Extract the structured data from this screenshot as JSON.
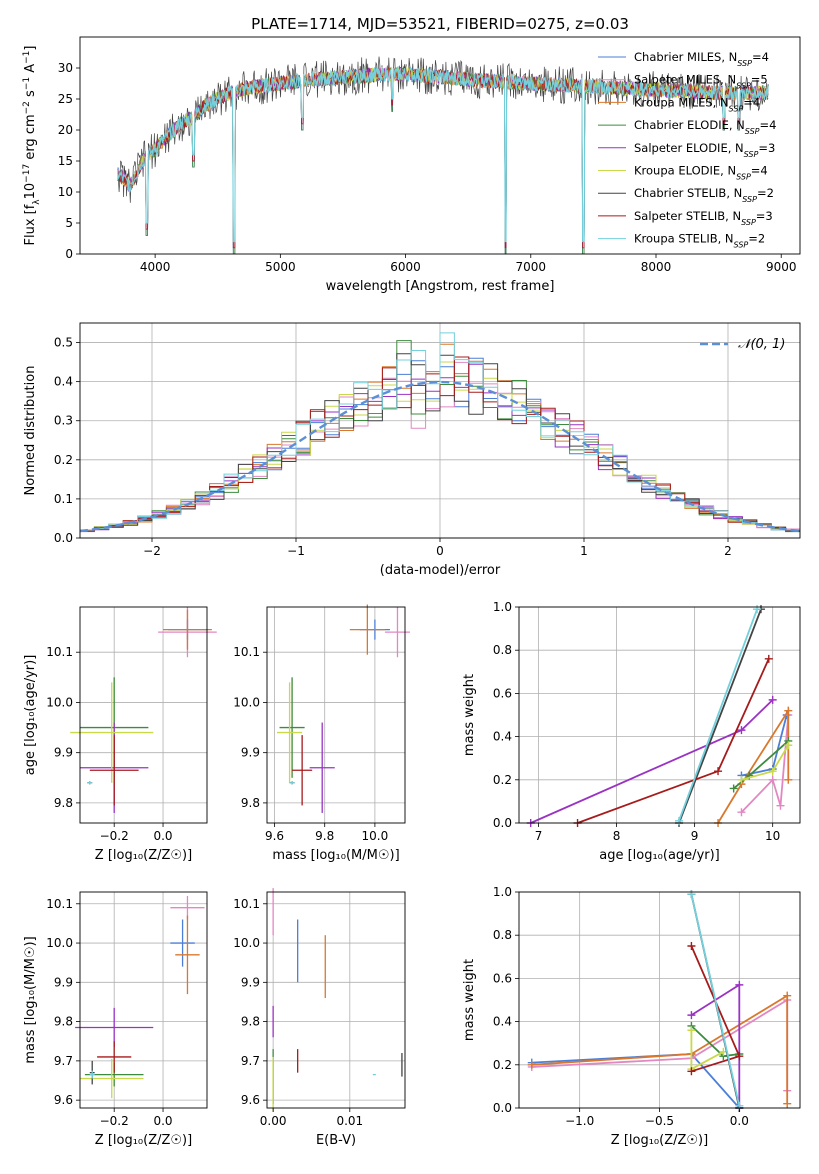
{
  "figure_title": "PLATE=1714, MJD=53521, FIBERID=0275, z=0.03",
  "palette": [
    "#4b7fd8",
    "#e287c2",
    "#d9782d",
    "#3d8b3d",
    "#9a32c4",
    "#c9d94a",
    "#444444",
    "#a61b1b",
    "#73d0dc"
  ],
  "chart_data": [
    {
      "id": "spectrum",
      "type": "line",
      "title": "PLATE=1714, MJD=53521, FIBERID=0275, z=0.03",
      "xlabel": "wavelength [Angstrom, rest frame]",
      "ylabel_parts": [
        "Flux [f",
        "λ",
        "10",
        "−17",
        " erg cm",
        "−2",
        " s",
        "−1",
        " A",
        "−1",
        "]"
      ],
      "xlim": [
        3400,
        9150
      ],
      "ylim": [
        0,
        35
      ],
      "xticks": [
        4000,
        5000,
        6000,
        7000,
        8000,
        9000
      ],
      "yticks": [
        0,
        5,
        10,
        15,
        20,
        25,
        30
      ],
      "grid": false,
      "legend_position": "top-right",
      "continuum": [
        [
          3700,
          13
        ],
        [
          3800,
          11
        ],
        [
          3900,
          15
        ],
        [
          4000,
          17
        ],
        [
          4100,
          19
        ],
        [
          4200,
          21
        ],
        [
          4300,
          22
        ],
        [
          4400,
          24
        ],
        [
          4600,
          26
        ],
        [
          4800,
          27
        ],
        [
          5000,
          27.5
        ],
        [
          5200,
          28
        ],
        [
          5500,
          28.5
        ],
        [
          5800,
          29
        ],
        [
          6000,
          29
        ],
        [
          6300,
          28.5
        ],
        [
          6600,
          28
        ],
        [
          7000,
          27.5
        ],
        [
          7500,
          27
        ],
        [
          8000,
          26.5
        ],
        [
          8500,
          26
        ],
        [
          8900,
          26
        ]
      ],
      "dips": [
        {
          "x": 3933,
          "y": 3
        },
        {
          "x": 4305,
          "y": 14
        },
        {
          "x": 4630,
          "y": 0
        },
        {
          "x": 5175,
          "y": 20
        },
        {
          "x": 5893,
          "y": 23
        },
        {
          "x": 6800,
          "y": 0
        },
        {
          "x": 7420,
          "y": 0
        },
        {
          "x": 8542,
          "y": 20
        },
        {
          "x": 8662,
          "y": 20
        }
      ],
      "series": [
        {
          "name": "Chabrier MILES",
          "nssp": "4"
        },
        {
          "name": "Salpeter MILES",
          "nssp": "5"
        },
        {
          "name": "Kroupa MILES",
          "nssp": "4"
        },
        {
          "name": "Chabrier ELODIE",
          "nssp": "4"
        },
        {
          "name": "Salpeter ELODIE",
          "nssp": "3"
        },
        {
          "name": "Kroupa ELODIE",
          "nssp": "4"
        },
        {
          "name": "Chabrier STELIB",
          "nssp": "2"
        },
        {
          "name": "Salpeter STELIB",
          "nssp": "3"
        },
        {
          "name": "Kroupa STELIB",
          "nssp": "2"
        }
      ]
    },
    {
      "id": "residuals",
      "type": "line",
      "xlabel": "(data-model)/error",
      "ylabel": "Normed distribution",
      "xlim": [
        -2.5,
        2.5
      ],
      "ylim": [
        0,
        0.55
      ],
      "xticks": [
        -2,
        -1,
        0,
        1,
        2
      ],
      "yticks": [
        0.0,
        0.1,
        0.2,
        0.3,
        0.4,
        0.5
      ],
      "grid": true,
      "legend_position": "top-right",
      "legend_label": "𝒩(0, 1)",
      "bin_width": 0.1
    },
    {
      "id": "z-age",
      "type": "scatter",
      "xlabel": "Z [log₁₀(Z/Z☉)]",
      "ylabel": "age  [log₁₀(age/yr)]",
      "xlim": [
        -0.34,
        0.18
      ],
      "ylim": [
        9.76,
        10.19
      ],
      "xticks": [
        -0.2,
        0.0
      ],
      "yticks": [
        9.8,
        9.9,
        10.0,
        10.1
      ],
      "grid": true,
      "points": [
        {
          "x": 0.1,
          "y": 10.145,
          "xerr": 0.08,
          "yerr": 0.02
        },
        {
          "x": 0.1,
          "y": 10.14,
          "xerr": 0.12,
          "yerr": 0.05
        },
        {
          "x": 0.1,
          "y": 10.145,
          "xerr": 0.1,
          "yerr": 0.04
        },
        {
          "x": -0.2,
          "y": 9.95,
          "xerr": 0.14,
          "yerr": 0.1
        },
        {
          "x": -0.2,
          "y": 9.87,
          "xerr": 0.14,
          "yerr": 0.09
        },
        {
          "x": -0.21,
          "y": 9.94,
          "xerr": 0.17,
          "yerr": 0.1
        },
        {
          "x": -0.3,
          "y": 9.84,
          "xerr": 0.01,
          "yerr": 0.003
        },
        {
          "x": -0.2,
          "y": 9.865,
          "xerr": 0.1,
          "yerr": 0.07
        },
        {
          "x": -0.3,
          "y": 9.84,
          "xerr": 0.01,
          "yerr": 0.003
        }
      ]
    },
    {
      "id": "mass-age",
      "type": "scatter",
      "xlabel": "mass [log₁₀(M/M☉)]",
      "ylabel": "",
      "xlim": [
        9.57,
        10.12
      ],
      "ylim": [
        9.76,
        10.19
      ],
      "xticks": [
        9.6,
        9.8,
        10.0
      ],
      "yticks": [
        9.8,
        9.9,
        10.0,
        10.1
      ],
      "grid": true,
      "points": [
        {
          "x": 10.0,
          "y": 10.145,
          "xerr": 0.06,
          "yerr": 0.02
        },
        {
          "x": 10.09,
          "y": 10.14,
          "xerr": 0.05,
          "yerr": 0.05
        },
        {
          "x": 9.97,
          "y": 10.145,
          "xerr": 0.07,
          "yerr": 0.05
        },
        {
          "x": 9.67,
          "y": 9.95,
          "xerr": 0.05,
          "yerr": 0.1
        },
        {
          "x": 9.79,
          "y": 9.87,
          "xerr": 0.05,
          "yerr": 0.09
        },
        {
          "x": 9.66,
          "y": 9.94,
          "xerr": 0.05,
          "yerr": 0.1
        },
        {
          "x": 9.67,
          "y": 9.84,
          "xerr": 0.01,
          "yerr": 0.003
        },
        {
          "x": 9.71,
          "y": 9.865,
          "xerr": 0.04,
          "yerr": 0.07
        },
        {
          "x": 9.67,
          "y": 9.84,
          "xerr": 0.01,
          "yerr": 0.003
        }
      ]
    },
    {
      "id": "weight-age",
      "type": "line",
      "xlabel": "age  [log₁₀(age/yr)]",
      "ylabel": "mass weight",
      "xlim": [
        6.75,
        10.35
      ],
      "ylim": [
        0,
        1
      ],
      "xticks": [
        7,
        8,
        9,
        10
      ],
      "yticks": [
        0.0,
        0.2,
        0.4,
        0.6,
        0.8,
        1.0
      ],
      "grid": true,
      "series": [
        {
          "name": "Chabrier MILES",
          "points": [
            [
              9.6,
              0.22
            ],
            [
              10.0,
              0.25
            ],
            [
              10.18,
              0.5
            ]
          ]
        },
        {
          "name": "Salpeter MILES",
          "points": [
            [
              9.6,
              0.05
            ],
            [
              10.0,
              0.2
            ],
            [
              10.1,
              0.08
            ],
            [
              10.2,
              0.5
            ]
          ]
        },
        {
          "name": "Kroupa MILES",
          "points": [
            [
              9.3,
              0.0
            ],
            [
              9.6,
              0.18
            ],
            [
              10.2,
              0.52
            ],
            [
              10.2,
              0.2
            ]
          ]
        },
        {
          "name": "Chabrier ELODIE",
          "points": [
            [
              9.5,
              0.16
            ],
            [
              9.7,
              0.22
            ],
            [
              10.2,
              0.38
            ]
          ]
        },
        {
          "name": "Salpeter ELODIE",
          "points": [
            [
              6.9,
              0.0
            ],
            [
              9.6,
              0.43
            ],
            [
              10.0,
              0.57
            ]
          ]
        },
        {
          "name": "Kroupa ELODIE",
          "points": [
            [
              9.6,
              0.2
            ],
            [
              10.0,
              0.24
            ],
            [
              10.2,
              0.36
            ]
          ]
        },
        {
          "name": "Chabrier STELIB",
          "points": [
            [
              8.8,
              0.0
            ],
            [
              9.85,
              0.99
            ]
          ]
        },
        {
          "name": "Salpeter STELIB",
          "points": [
            [
              7.5,
              0.0
            ],
            [
              9.3,
              0.24
            ],
            [
              9.95,
              0.76
            ]
          ]
        },
        {
          "name": "Kroupa STELIB",
          "points": [
            [
              8.8,
              0.01
            ],
            [
              9.8,
              0.99
            ]
          ]
        }
      ]
    },
    {
      "id": "z-mass",
      "type": "scatter",
      "xlabel": "Z [log₁₀(Z/Z☉)]",
      "ylabel": "mass [log₁₀(M/M☉)]",
      "xlim": [
        -0.34,
        0.18
      ],
      "ylim": [
        9.58,
        10.13
      ],
      "xticks": [
        -0.2,
        0.0
      ],
      "yticks": [
        9.6,
        9.7,
        9.8,
        9.9,
        10.0,
        10.1
      ],
      "grid": true,
      "points": [
        {
          "x": 0.08,
          "y": 10.0,
          "xerr": 0.05,
          "yerr": 0.06
        },
        {
          "x": 0.1,
          "y": 10.09,
          "xerr": 0.07,
          "yerr": 0.03
        },
        {
          "x": 0.1,
          "y": 9.97,
          "xerr": 0.05,
          "yerr": 0.1
        },
        {
          "x": -0.2,
          "y": 9.665,
          "xerr": 0.12,
          "yerr": 0.03
        },
        {
          "x": -0.2,
          "y": 9.785,
          "xerr": 0.16,
          "yerr": 0.05
        },
        {
          "x": -0.21,
          "y": 9.655,
          "xerr": 0.13,
          "yerr": 0.05
        },
        {
          "x": -0.29,
          "y": 9.67,
          "xerr": 0.01,
          "yerr": 0.03
        },
        {
          "x": -0.2,
          "y": 9.71,
          "xerr": 0.07,
          "yerr": 0.04
        },
        {
          "x": -0.29,
          "y": 9.665,
          "xerr": 0.01,
          "yerr": 0.01
        }
      ]
    },
    {
      "id": "ebv-mass",
      "type": "scatter",
      "xlabel": "E(B-V)",
      "ylabel": "",
      "xlim": [
        -0.0008,
        0.0172
      ],
      "ylim": [
        9.58,
        10.13
      ],
      "xticks": [
        0.0,
        0.01
      ],
      "yticks": [
        9.6,
        9.7,
        9.8,
        9.9,
        10.0,
        10.1
      ],
      "grid": true,
      "points": [
        {
          "x": 0.0032,
          "y": 9.98,
          "xerr": 0,
          "yerr": 0.08
        },
        {
          "x": 0.0,
          "y": 10.08,
          "xerr": 0,
          "yerr": 0.06
        },
        {
          "x": 0.0068,
          "y": 9.94,
          "xerr": 0,
          "yerr": 0.08
        },
        {
          "x": 0.0,
          "y": 9.66,
          "xerr": 0,
          "yerr": 0.07
        },
        {
          "x": 0.0,
          "y": 9.8,
          "xerr": 0,
          "yerr": 0.04
        },
        {
          "x": 0.0,
          "y": 9.64,
          "xerr": 0,
          "yerr": 0.07
        },
        {
          "x": 0.0168,
          "y": 9.69,
          "xerr": 0,
          "yerr": 0.03
        },
        {
          "x": 0.0032,
          "y": 9.7,
          "xerr": 0,
          "yerr": 0.03
        },
        {
          "x": 0.0132,
          "y": 9.665,
          "xerr": 0.0002,
          "yerr": 0.001
        }
      ]
    },
    {
      "id": "weight-z",
      "type": "line",
      "xlabel": "Z [log₁₀(Z/Z☉)]",
      "ylabel": "mass weight",
      "xlim": [
        -1.38,
        0.38
      ],
      "ylim": [
        0,
        1
      ],
      "xticks": [
        -1.0,
        -0.5,
        0.0
      ],
      "yticks": [
        0.0,
        0.2,
        0.4,
        0.6,
        0.8,
        1.0
      ],
      "grid": true,
      "series": [
        {
          "name": "Chabrier MILES",
          "points": [
            [
              -1.3,
              0.21
            ],
            [
              -0.3,
              0.25
            ],
            [
              0.0,
              0.0
            ]
          ]
        },
        {
          "name": "Salpeter MILES",
          "points": [
            [
              -1.3,
              0.19
            ],
            [
              -0.3,
              0.23
            ],
            [
              0.3,
              0.5
            ],
            [
              0.3,
              0.08
            ]
          ]
        },
        {
          "name": "Kroupa MILES",
          "points": [
            [
              -1.3,
              0.2
            ],
            [
              -0.3,
              0.25
            ],
            [
              0.3,
              0.52
            ],
            [
              0.3,
              0.02
            ]
          ]
        },
        {
          "name": "Chabrier ELODIE",
          "points": [
            [
              -0.3,
              0.38
            ],
            [
              -0.1,
              0.24
            ],
            [
              0.0,
              0.25
            ]
          ]
        },
        {
          "name": "Salpeter ELODIE",
          "points": [
            [
              -0.3,
              0.43
            ],
            [
              0.0,
              0.57
            ],
            [
              0.0,
              0.0
            ]
          ]
        },
        {
          "name": "Kroupa ELODIE",
          "points": [
            [
              -0.3,
              0.36
            ],
            [
              -0.3,
              0.18
            ],
            [
              -0.1,
              0.26
            ]
          ]
        },
        {
          "name": "Chabrier STELIB",
          "points": [
            [
              -0.3,
              0.99
            ],
            [
              0.0,
              0.0
            ]
          ]
        },
        {
          "name": "Salpeter STELIB",
          "points": [
            [
              -0.3,
              0.75
            ],
            [
              0.0,
              0.24
            ],
            [
              -0.3,
              0.17
            ]
          ]
        },
        {
          "name": "Kroupa STELIB",
          "points": [
            [
              -0.3,
              0.99
            ],
            [
              0.0,
              0.01
            ]
          ]
        }
      ]
    }
  ]
}
